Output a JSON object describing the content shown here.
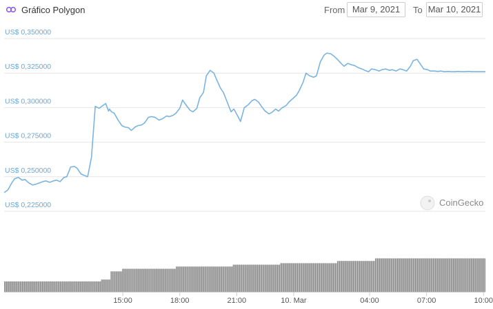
{
  "header": {
    "title": "Gráfico Polygon",
    "from_label": "From",
    "to_label": "To",
    "from_date": "Mar 9, 2021",
    "to_date": "Mar 10, 2021"
  },
  "watermark": {
    "text": "CoinGecko"
  },
  "colors": {
    "line": "#7ab3e0",
    "volume": "#8c8c8c",
    "grid": "#e6e6e6",
    "ytick": "#6aa6d6"
  },
  "chart_data": {
    "type": "line",
    "ytick_labels": [
      "US$ 0,350000",
      "US$ 0,325000",
      "US$ 0,300000",
      "US$ 0,275000",
      "US$ 0,250000",
      "US$ 0,225000"
    ],
    "ytick_values": [
      0.35,
      0.325,
      0.3,
      0.275,
      0.25,
      0.225
    ],
    "ylim": [
      0.2175,
      0.35
    ],
    "xtick_labels": [
      "15:00",
      "18:00",
      "21:00",
      "10. Mar",
      "04:00",
      "07:00",
      "10:00"
    ],
    "xtick_values": [
      6.25,
      9.25,
      12.25,
      15.25,
      19.25,
      22.25,
      25.25
    ],
    "xlim": [
      0,
      25.35
    ],
    "x_unit": "hours since Mar 9, 2021 08:45",
    "series": [
      {
        "kind": "price",
        "x": [
          0,
          0.2,
          0.4,
          0.55,
          0.75,
          0.95,
          1.1,
          1.3,
          1.5,
          1.65,
          1.85,
          2.05,
          2.2,
          2.4,
          2.6,
          2.75,
          2.95,
          3.15,
          3.3,
          3.5,
          3.7,
          3.85,
          4.05,
          4.2,
          4.4,
          4.6,
          4.8,
          5.0,
          5.15,
          5.35,
          5.5,
          5.55,
          5.65,
          5.8,
          6.0,
          6.2,
          6.35,
          6.55,
          6.7,
          6.9,
          7.05,
          7.25,
          7.4,
          7.6,
          7.75,
          7.95,
          8.15,
          8.35,
          8.55,
          8.7,
          8.9,
          9.05,
          9.25,
          9.4,
          9.6,
          9.8,
          9.95,
          10.15,
          10.3,
          10.5,
          10.65,
          10.85,
          11.05,
          11.2,
          11.4,
          11.55,
          11.75,
          11.95,
          12.1,
          12.3,
          12.45,
          12.65,
          12.85,
          13.05,
          13.2,
          13.4,
          13.6,
          13.75,
          13.95,
          14.1,
          14.3,
          14.45,
          14.65,
          14.85,
          15.0,
          15.2,
          15.4,
          15.55,
          15.75,
          15.9,
          16.1,
          16.3,
          16.45,
          16.65,
          16.85,
          17.0,
          17.2,
          17.4,
          17.55,
          17.75,
          17.9,
          18.1,
          18.3,
          18.45,
          18.65,
          18.85,
          19.0,
          19.2,
          19.35,
          19.55,
          19.75,
          19.9,
          20.1,
          20.3,
          20.45,
          20.65,
          20.85,
          21.0,
          21.2,
          21.4,
          21.55,
          21.75,
          21.9,
          22.1,
          22.3,
          22.45,
          22.65,
          22.85,
          23.0,
          23.2,
          23.4,
          23.55,
          23.75,
          23.9,
          24.1,
          24.25,
          24.45,
          24.65,
          24.8,
          25.0,
          25.2,
          25.35
        ],
        "y": [
          0.2335,
          0.2355,
          0.2405,
          0.2435,
          0.2445,
          0.2425,
          0.243,
          0.2405,
          0.239,
          0.2395,
          0.2405,
          0.2415,
          0.242,
          0.241,
          0.242,
          0.2425,
          0.2415,
          0.2445,
          0.245,
          0.252,
          0.2525,
          0.251,
          0.247,
          0.246,
          0.245,
          0.259,
          0.296,
          0.2945,
          0.296,
          0.298,
          0.2925,
          0.294,
          0.292,
          0.291,
          0.286,
          0.282,
          0.281,
          0.2805,
          0.2785,
          0.281,
          0.282,
          0.2825,
          0.284,
          0.288,
          0.2885,
          0.288,
          0.286,
          0.287,
          0.289,
          0.2885,
          0.2895,
          0.291,
          0.2945,
          0.3005,
          0.2965,
          0.293,
          0.292,
          0.2945,
          0.302,
          0.306,
          0.318,
          0.322,
          0.32,
          0.315,
          0.309,
          0.306,
          0.299,
          0.292,
          0.294,
          0.289,
          0.285,
          0.295,
          0.297,
          0.3,
          0.301,
          0.299,
          0.295,
          0.2925,
          0.2905,
          0.2915,
          0.294,
          0.2925,
          0.295,
          0.2965,
          0.299,
          0.3015,
          0.304,
          0.3075,
          0.3135,
          0.32,
          0.318,
          0.317,
          0.318,
          0.328,
          0.333,
          0.3345,
          0.334,
          0.332,
          0.33,
          0.327,
          0.325,
          0.327,
          0.326,
          0.3255,
          0.324,
          0.323,
          0.322,
          0.321,
          0.323,
          0.3225,
          0.3215,
          0.3225,
          0.323,
          0.322,
          0.3225,
          0.3215,
          0.323,
          0.3225,
          0.3215,
          0.325,
          0.329,
          0.33,
          0.327,
          0.323,
          0.3225,
          0.3215,
          0.3215,
          0.3212,
          0.3215,
          0.321,
          0.3212,
          0.321,
          0.321,
          0.3212,
          0.321,
          0.321,
          0.3212,
          0.321,
          0.321,
          0.321,
          0.321,
          0.321
        ]
      },
      {
        "kind": "volume",
        "levels": [
          {
            "x0": 0.0,
            "x1": 5.1,
            "v": 0.28
          },
          {
            "x0": 5.1,
            "x1": 5.6,
            "v": 0.33
          },
          {
            "x0": 5.6,
            "x1": 6.2,
            "v": 0.55
          },
          {
            "x0": 6.2,
            "x1": 9.0,
            "v": 0.62
          },
          {
            "x0": 9.0,
            "x1": 12.0,
            "v": 0.68
          },
          {
            "x0": 12.0,
            "x1": 14.5,
            "v": 0.73
          },
          {
            "x0": 14.5,
            "x1": 17.5,
            "v": 0.77
          },
          {
            "x0": 17.5,
            "x1": 19.5,
            "v": 0.83
          },
          {
            "x0": 19.5,
            "x1": 25.35,
            "v": 0.9
          }
        ]
      }
    ]
  }
}
